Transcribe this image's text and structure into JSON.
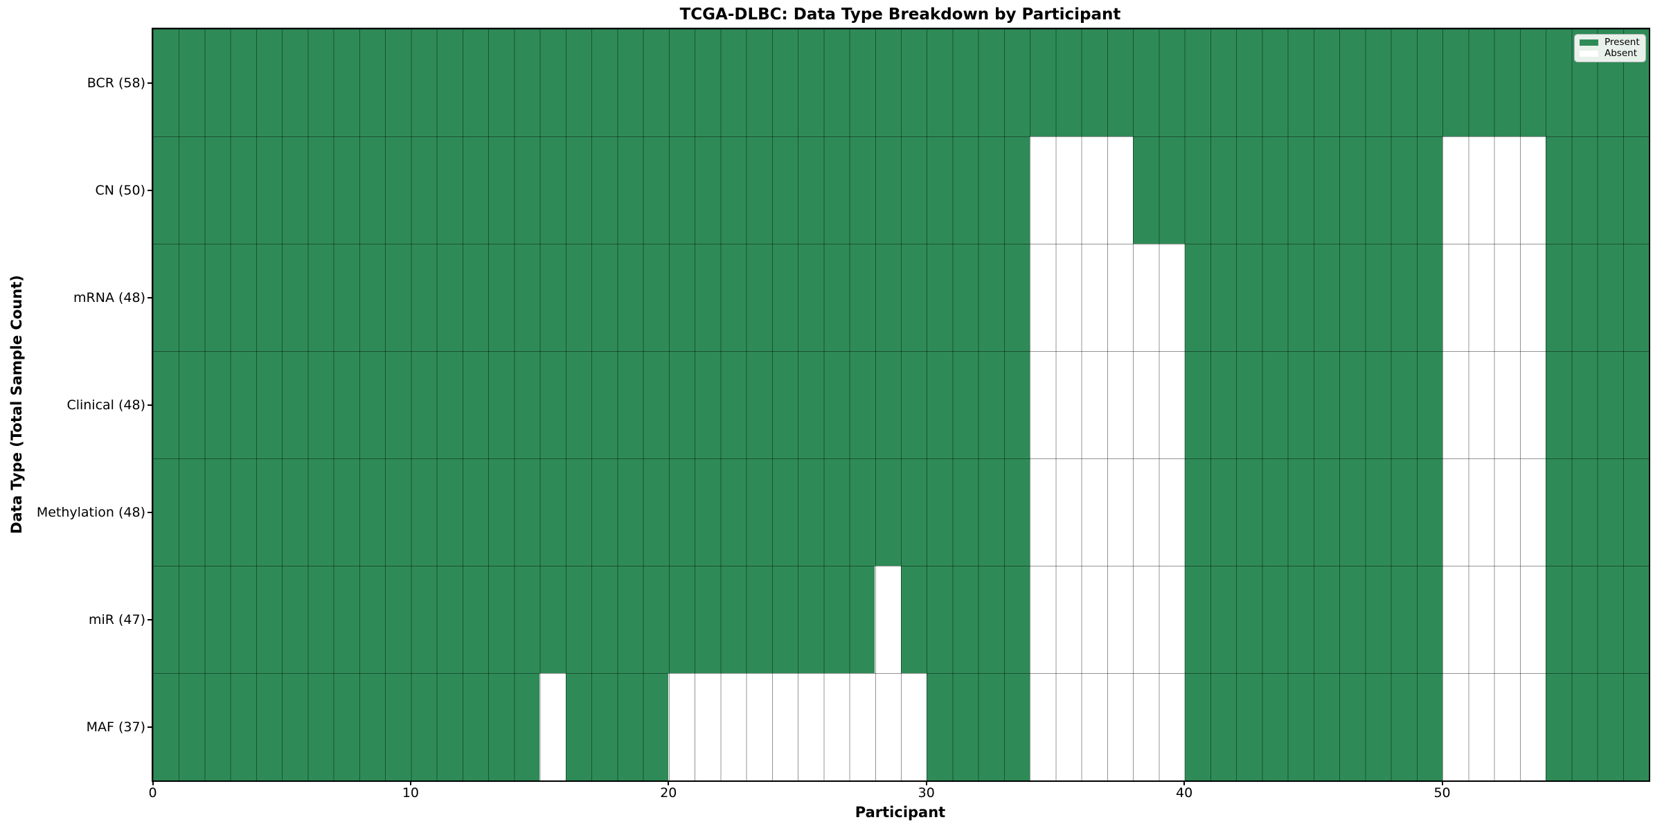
{
  "chart_data": {
    "type": "heatmap",
    "title": "TCGA-DLBC: Data Type Breakdown by Participant",
    "xlabel": "Participant",
    "ylabel": "Data Type (Total Sample Count)",
    "n_participants": 58,
    "x_ticks": [
      0,
      10,
      20,
      30,
      40,
      50
    ],
    "grid": true,
    "colors": {
      "present": "#2E8B57",
      "absent": "#ffffff"
    },
    "legend_position": "upper right",
    "legend": [
      {
        "label": "Present",
        "color": "#2E8B57"
      },
      {
        "label": "Absent",
        "color": "#ffffff"
      }
    ],
    "rows": [
      {
        "label": "BCR (58)",
        "data_type": "BCR",
        "total_samples": 58,
        "absent_participants": []
      },
      {
        "label": "CN (50)",
        "data_type": "CN",
        "total_samples": 50,
        "absent_participants": [
          34,
          35,
          36,
          37,
          50,
          51,
          52,
          53
        ]
      },
      {
        "label": "mRNA (48)",
        "data_type": "mRNA",
        "total_samples": 48,
        "absent_participants": [
          34,
          35,
          36,
          37,
          38,
          39,
          50,
          51,
          52,
          53
        ]
      },
      {
        "label": "Clinical (48)",
        "data_type": "Clinical",
        "total_samples": 48,
        "absent_participants": [
          34,
          35,
          36,
          37,
          38,
          39,
          50,
          51,
          52,
          53
        ]
      },
      {
        "label": "Methylation (48)",
        "data_type": "Methylation",
        "total_samples": 48,
        "absent_participants": [
          34,
          35,
          36,
          37,
          38,
          39,
          50,
          51,
          52,
          53
        ]
      },
      {
        "label": "miR (47)",
        "data_type": "miR",
        "total_samples": 47,
        "absent_participants": [
          28,
          34,
          35,
          36,
          37,
          38,
          39,
          50,
          51,
          52,
          53
        ]
      },
      {
        "label": "MAF (37)",
        "data_type": "MAF",
        "total_samples": 37,
        "absent_participants": [
          15,
          20,
          21,
          22,
          23,
          24,
          25,
          26,
          27,
          28,
          29,
          34,
          35,
          36,
          37,
          38,
          39,
          50,
          51,
          52,
          53
        ]
      }
    ]
  }
}
